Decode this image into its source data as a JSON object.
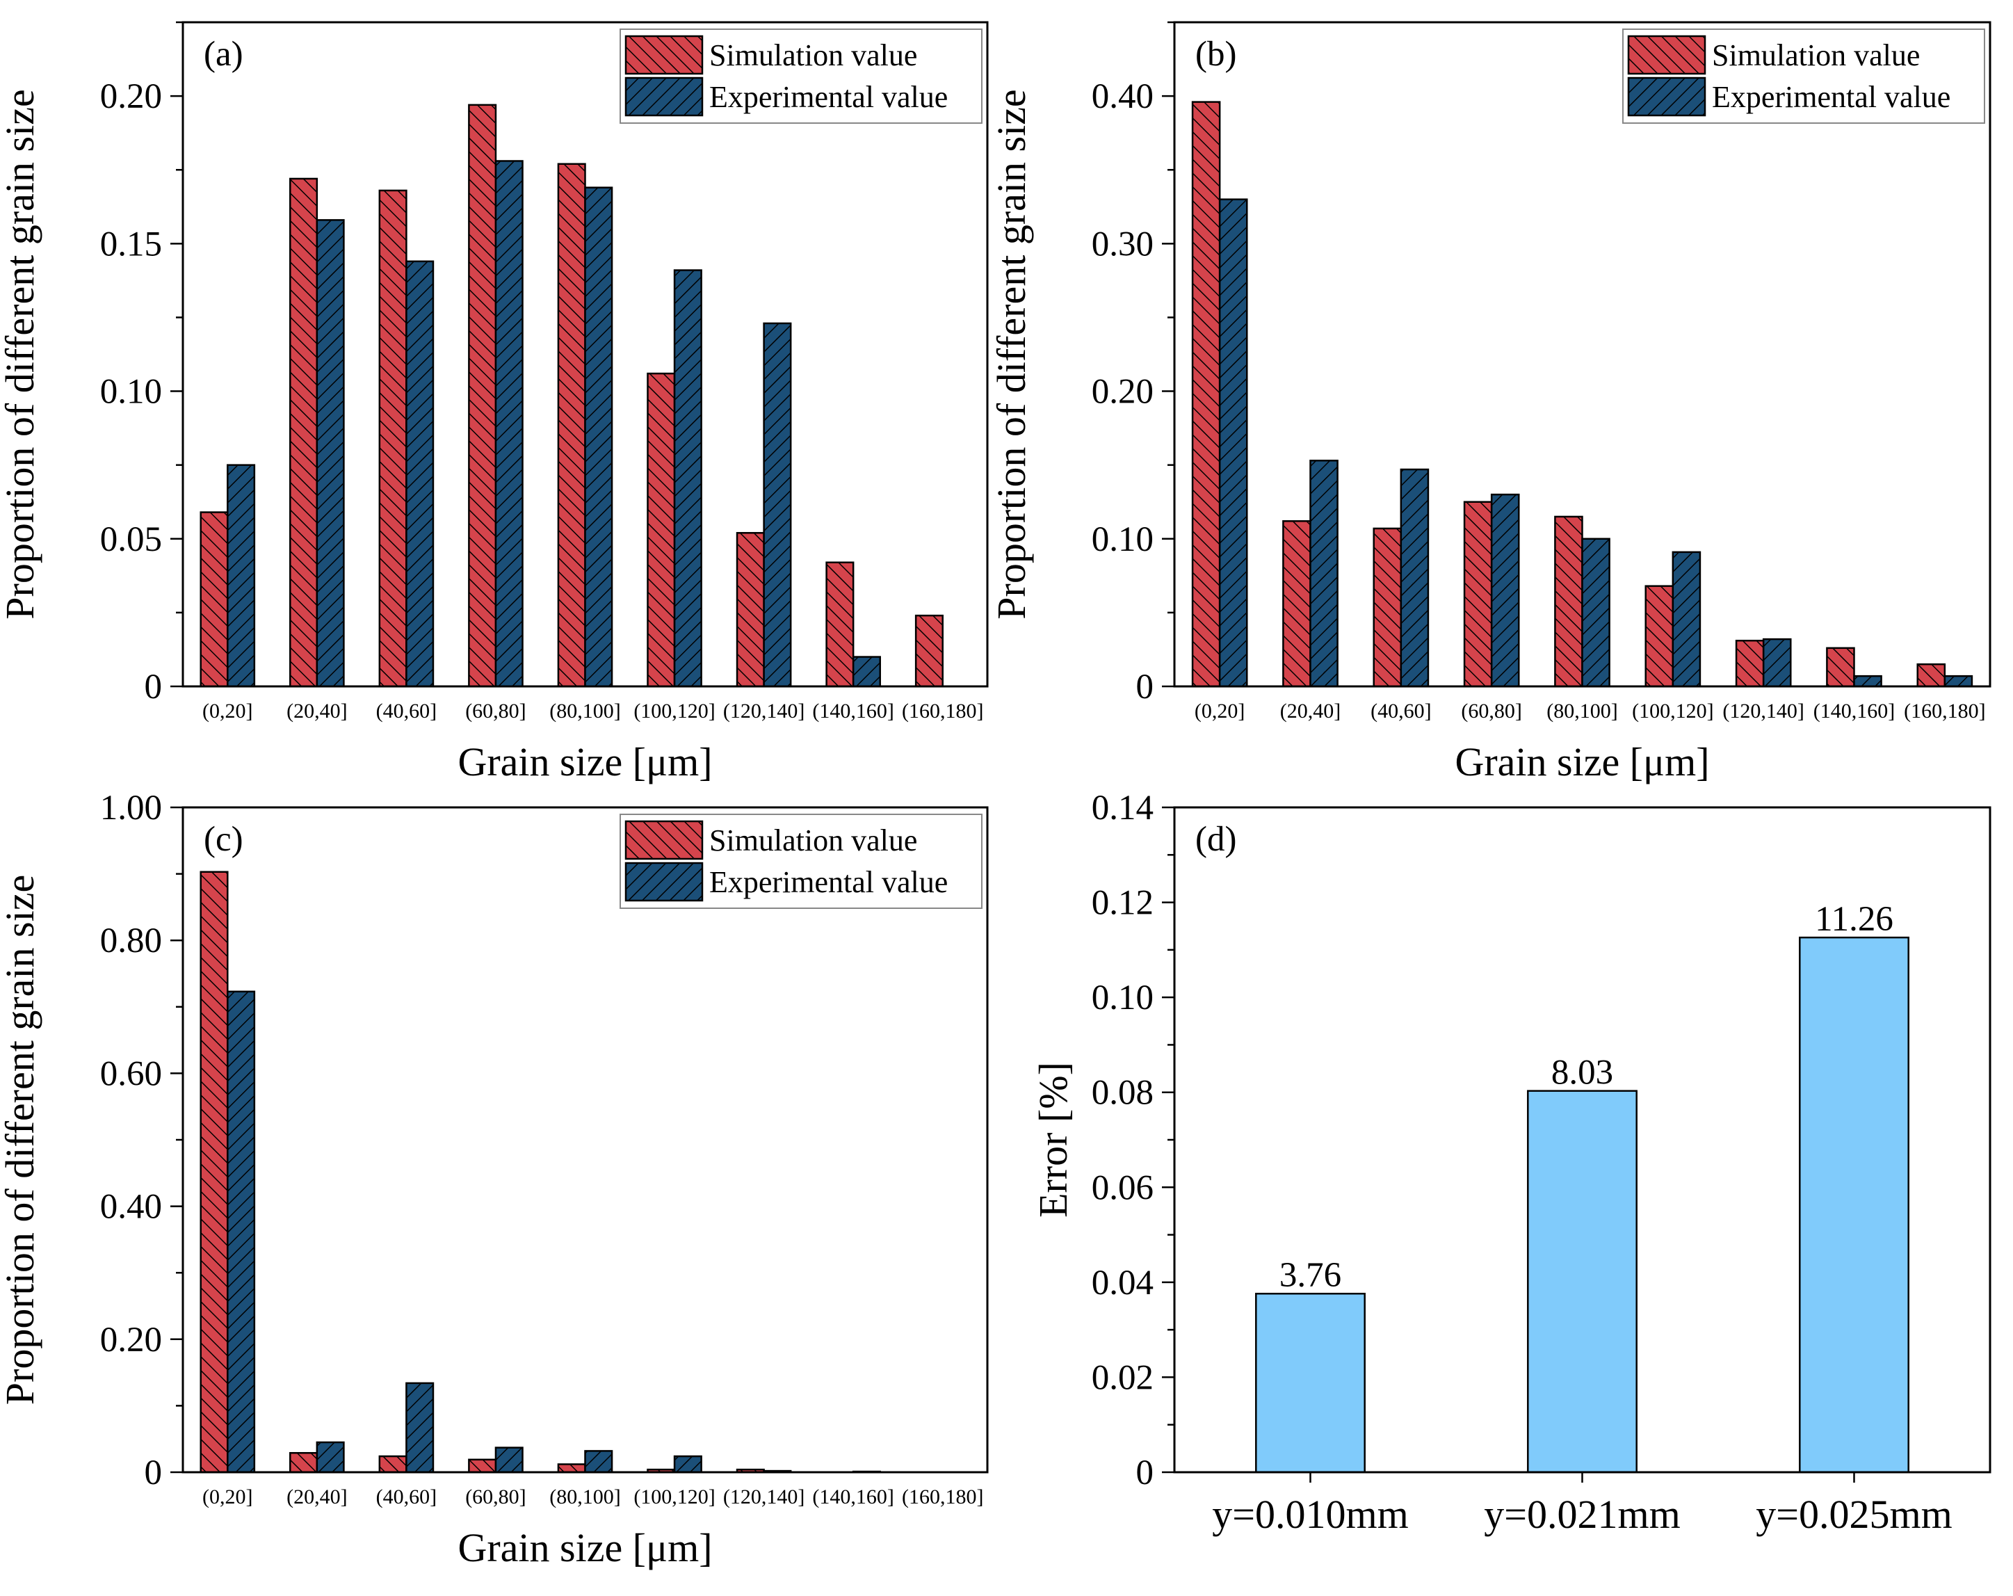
{
  "colors": {
    "simulation": "#d5444c",
    "experimental": "#1b4f78",
    "error_bar": "#80cbfb",
    "hatch": "#000000"
  },
  "chart_data": [
    {
      "panel": "(a)",
      "type": "bar",
      "categories": [
        "(0,20]",
        "(20,40]",
        "(40,60]",
        "(60,80]",
        "(80,100]",
        "(100,120]",
        "(120,140]",
        "(140,160]",
        "(160,180]"
      ],
      "series": [
        {
          "name": "Simulation value",
          "values": [
            0.059,
            0.172,
            0.168,
            0.197,
            0.177,
            0.106,
            0.052,
            0.042,
            0.024
          ]
        },
        {
          "name": "Experimental value",
          "values": [
            0.075,
            0.158,
            0.144,
            0.178,
            0.169,
            0.141,
            0.123,
            0.01,
            0.0
          ]
        }
      ],
      "xlabel": "Grain size [μm]",
      "ylabel": "Proportion of different grain size",
      "ylim": [
        0,
        0.225
      ],
      "yticks": [
        0,
        0.05,
        0.1,
        0.15,
        0.2
      ],
      "ytick_labels": [
        "0",
        "0.05",
        "0.10",
        "0.15",
        "0.20"
      ],
      "legend": "top-right"
    },
    {
      "panel": "(b)",
      "type": "bar",
      "categories": [
        "(0,20]",
        "(20,40]",
        "(40,60]",
        "(60,80]",
        "(80,100]",
        "(100,120]",
        "(120,140]",
        "(140,160]",
        "(160,180]"
      ],
      "series": [
        {
          "name": "Simulation value",
          "values": [
            0.396,
            0.112,
            0.107,
            0.125,
            0.115,
            0.068,
            0.031,
            0.026,
            0.015
          ]
        },
        {
          "name": "Experimental value",
          "values": [
            0.33,
            0.153,
            0.147,
            0.13,
            0.1,
            0.091,
            0.032,
            0.007,
            0.007
          ]
        }
      ],
      "xlabel": "Grain size [μm]",
      "ylabel": "Proportion of different grain size",
      "ylim": [
        0,
        0.45
      ],
      "yticks": [
        0,
        0.1,
        0.2,
        0.3,
        0.4
      ],
      "ytick_labels": [
        "0",
        "0.10",
        "0.20",
        "0.30",
        "0.40"
      ],
      "legend": "top-right"
    },
    {
      "panel": "(c)",
      "type": "bar",
      "categories": [
        "(0,20]",
        "(20,40]",
        "(40,60]",
        "(60,80]",
        "(80,100]",
        "(100,120]",
        "(120,140]",
        "(140,160]",
        "(160,180]"
      ],
      "series": [
        {
          "name": "Simulation value",
          "values": [
            0.903,
            0.029,
            0.024,
            0.019,
            0.012,
            0.004,
            0.004,
            0.0,
            0.0
          ]
        },
        {
          "name": "Experimental value",
          "values": [
            0.723,
            0.045,
            0.134,
            0.037,
            0.032,
            0.024,
            0.002,
            0.001,
            0.0
          ]
        }
      ],
      "xlabel": "Grain size [μm]",
      "ylabel": "Proportion of different grain size",
      "ylim": [
        0,
        1.0
      ],
      "yticks": [
        0,
        0.2,
        0.4,
        0.6,
        0.8,
        1.0
      ],
      "ytick_labels": [
        "0",
        "0.20",
        "0.40",
        "0.60",
        "0.80",
        "1.00"
      ],
      "legend": "top-right"
    },
    {
      "panel": "(d)",
      "type": "bar",
      "categories": [
        "y=0.010mm",
        "y=0.021mm",
        "y=0.025mm"
      ],
      "values": [
        0.0376,
        0.0803,
        0.1126
      ],
      "data_labels": [
        "3.76",
        "8.03",
        "11.26"
      ],
      "xlabel": "",
      "ylabel": "Error [%]",
      "ylim": [
        0,
        0.14
      ],
      "yticks": [
        0,
        0.02,
        0.04,
        0.06,
        0.08,
        0.1,
        0.12,
        0.14
      ],
      "ytick_labels": [
        "0",
        "0.02",
        "0.04",
        "0.06",
        "0.08",
        "0.10",
        "0.12",
        "0.14"
      ]
    }
  ]
}
